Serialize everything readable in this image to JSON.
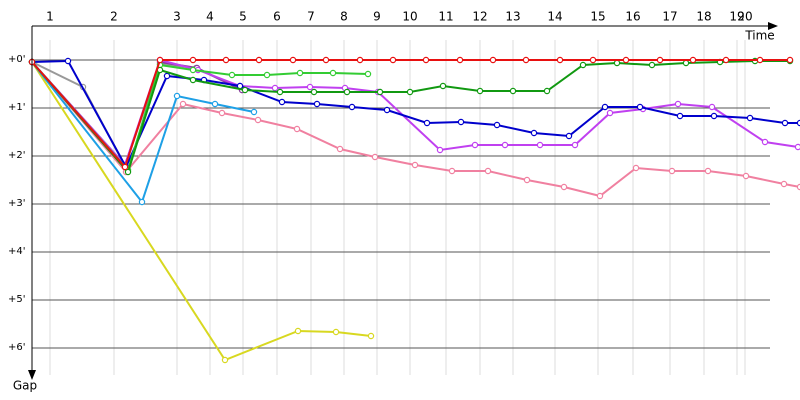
{
  "chart_data": {
    "type": "line",
    "x_label": "Time",
    "y_label": "Gap",
    "xlim": [
      0,
      768
    ],
    "ylim": [
      -43.75,
      400
    ],
    "xticks": [
      {
        "value": 18,
        "label": "1"
      },
      {
        "value": 82,
        "label": "2"
      },
      {
        "value": 145,
        "label": "3"
      },
      {
        "value": 178,
        "label": "4"
      },
      {
        "value": 211,
        "label": "5"
      },
      {
        "value": 245,
        "label": "6"
      },
      {
        "value": 279,
        "label": "7"
      },
      {
        "value": 312,
        "label": "8"
      },
      {
        "value": 345,
        "label": "9"
      },
      {
        "value": 378,
        "label": "10"
      },
      {
        "value": 414,
        "label": "11"
      },
      {
        "value": 448,
        "label": "12"
      },
      {
        "value": 481,
        "label": "13"
      },
      {
        "value": 523,
        "label": "14"
      },
      {
        "value": 566,
        "label": "15"
      },
      {
        "value": 601,
        "label": "16"
      },
      {
        "value": 638,
        "label": "17"
      },
      {
        "value": 672,
        "label": "18"
      },
      {
        "value": 705,
        "label": "19"
      },
      {
        "value": 713,
        "label": "20"
      }
    ],
    "yticks": [
      {
        "value": 0,
        "label": "+0'"
      },
      {
        "value": 60,
        "label": "+1'"
      },
      {
        "value": 120,
        "label": "+2'"
      },
      {
        "value": 180,
        "label": "+3'"
      },
      {
        "value": 240,
        "label": "+4'"
      },
      {
        "value": 300,
        "label": "+5'"
      },
      {
        "value": 360,
        "label": "+6'"
      }
    ],
    "grid": true,
    "series": [
      {
        "color": "#f080a0",
        "x": [
          0,
          94,
          151,
          190,
          226,
          265,
          308,
          343,
          383,
          420,
          456,
          495,
          532,
          568,
          604,
          640,
          676,
          714,
          752,
          768
        ],
        "values": [
          2.5,
          140,
          55,
          66.25,
          75,
          86.25,
          111.25,
          121.25,
          131.25,
          138.75,
          138.75,
          150,
          158.75,
          170,
          135,
          138.75,
          138.75,
          145,
          155,
          158.75
        ]
      },
      {
        "color": "#d8d820",
        "x": [
          0,
          193,
          266,
          304,
          339
        ],
        "values": [
          2.5,
          375,
          338.75,
          340,
          345
        ]
      },
      {
        "color": "#999999",
        "x": [
          0,
          51,
          93,
          128,
          164,
          210
        ],
        "values": [
          2.5,
          33.75,
          132.5,
          5,
          10,
          37.5
        ]
      },
      {
        "color": "#1ea0e6",
        "x": [
          0,
          110,
          145,
          183,
          222
        ],
        "values": [
          2.5,
          177.5,
          45,
          55,
          65
        ]
      },
      {
        "color": "#8a3aa0",
        "x": [
          0,
          93,
          128,
          165,
          210
        ],
        "values": [
          2.5,
          131.25,
          2.5,
          10,
          37.5
        ]
      },
      {
        "color": "#c040f0",
        "x": [
          0,
          93,
          128,
          166,
          208,
          243,
          278,
          313,
          346,
          408,
          443,
          473,
          508,
          543,
          578,
          611,
          646,
          680,
          733,
          766
        ],
        "values": [
          2.5,
          131.25,
          0,
          12.5,
          32.5,
          35,
          33.75,
          35,
          40,
          112.5,
          106.25,
          106.25,
          106.25,
          106.25,
          66.25,
          61.25,
          55,
          58.75,
          102.5,
          108.75
        ]
      },
      {
        "color": "#0000cc",
        "x": [
          0,
          36,
          94,
          135,
          172,
          208,
          250,
          285,
          320,
          355,
          395,
          429,
          465,
          502,
          537,
          573,
          608,
          648,
          682,
          718,
          753,
          768
        ],
        "values": [
          2.5,
          1.25,
          133.75,
          20,
          25,
          32.5,
          52.5,
          55,
          58.75,
          62.5,
          78.75,
          77.5,
          81.25,
          91.25,
          95,
          58.75,
          58.75,
          70,
          70,
          72.5,
          78.75,
          78.75
        ]
      },
      {
        "color": "#33cc33",
        "x": [
          0,
          96,
          128,
          161,
          200,
          235,
          268,
          301,
          336
        ],
        "values": [
          2.5,
          137.5,
          6.25,
          12.5,
          18.75,
          18.75,
          16.25,
          16.25,
          17.5
        ]
      },
      {
        "color": "#119911",
        "x": [
          0,
          96,
          128,
          161,
          213,
          248,
          282,
          315,
          348,
          378,
          411,
          448,
          481,
          515,
          551,
          585,
          620,
          654,
          688,
          723,
          758
        ],
        "values": [
          2.5,
          140,
          12.5,
          25,
          37.5,
          40,
          40,
          40,
          40,
          40,
          32.5,
          38.75,
          38.75,
          38.75,
          6.25,
          3.75,
          6.25,
          3.75,
          2.5,
          1.25,
          1.25
        ]
      },
      {
        "color": "#e81010",
        "x": [
          0,
          93,
          128,
          161,
          194,
          227,
          261,
          294,
          328,
          361,
          394,
          428,
          461,
          494,
          528,
          561,
          594,
          628,
          661,
          694,
          728,
          758
        ],
        "values": [
          2.5,
          133.75,
          0,
          0,
          0,
          0,
          0,
          0,
          0,
          0,
          0,
          0,
          0,
          0,
          0,
          0,
          0,
          0,
          0,
          0,
          0,
          0
        ]
      }
    ]
  }
}
